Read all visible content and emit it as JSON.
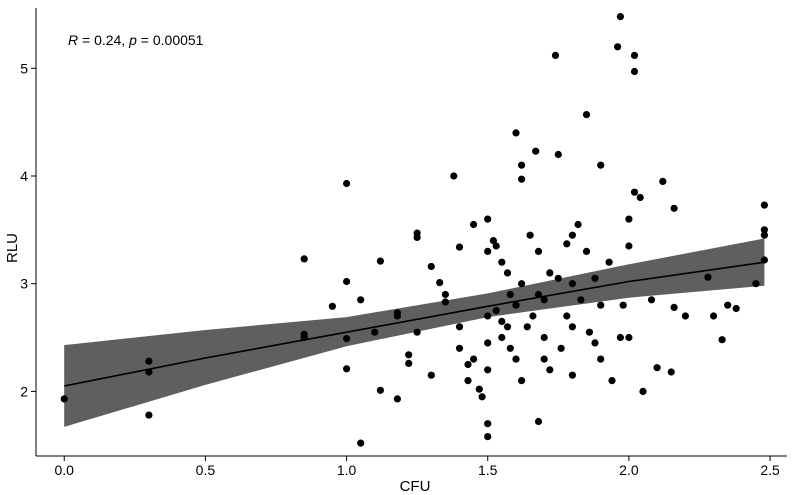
{
  "chart_data": {
    "type": "scatter",
    "title": "",
    "xlabel": "CFU",
    "ylabel": "RLU",
    "xlim": [
      -0.1,
      2.56
    ],
    "ylim": [
      1.4,
      5.56
    ],
    "x_ticks": [
      0.0,
      0.5,
      1.0,
      1.5,
      2.0,
      2.5
    ],
    "x_tick_labels": [
      "0.0",
      "0.5",
      "1.0",
      "1.5",
      "2.0",
      "2.5"
    ],
    "y_ticks": [
      2,
      3,
      4,
      5
    ],
    "y_tick_labels": [
      "2",
      "3",
      "4",
      "5"
    ],
    "grid": false,
    "annotation": {
      "r_label": "R",
      "r_text": " = 0.24, ",
      "p_label": "p",
      "p_text": " = 0.00051"
    },
    "regression": {
      "x": [
        0.0,
        0.5,
        1.0,
        1.5,
        2.0,
        2.48
      ],
      "y": [
        2.05,
        2.31,
        2.55,
        2.79,
        3.02,
        3.2
      ],
      "lower": [
        1.67,
        2.06,
        2.42,
        2.69,
        2.87,
        2.98
      ],
      "upper": [
        2.43,
        2.57,
        2.69,
        2.91,
        3.18,
        3.42
      ]
    },
    "points": [
      [
        0.0,
        1.93
      ],
      [
        0.3,
        2.28
      ],
      [
        0.3,
        2.18
      ],
      [
        0.3,
        1.78
      ],
      [
        0.85,
        3.23
      ],
      [
        0.85,
        2.53
      ],
      [
        0.85,
        2.5
      ],
      [
        0.95,
        2.79
      ],
      [
        1.0,
        3.93
      ],
      [
        1.0,
        3.02
      ],
      [
        1.0,
        2.49
      ],
      [
        1.0,
        2.21
      ],
      [
        1.05,
        2.85
      ],
      [
        1.05,
        1.52
      ],
      [
        1.1,
        2.55
      ],
      [
        1.12,
        3.21
      ],
      [
        1.12,
        2.01
      ],
      [
        1.18,
        2.73
      ],
      [
        1.18,
        2.7
      ],
      [
        1.18,
        1.93
      ],
      [
        1.22,
        2.34
      ],
      [
        1.22,
        2.26
      ],
      [
        1.25,
        3.47
      ],
      [
        1.25,
        3.43
      ],
      [
        1.25,
        2.55
      ],
      [
        1.3,
        3.16
      ],
      [
        1.3,
        2.15
      ],
      [
        1.33,
        3.01
      ],
      [
        1.35,
        2.9
      ],
      [
        1.35,
        2.83
      ],
      [
        1.38,
        4.0
      ],
      [
        1.4,
        3.34
      ],
      [
        1.4,
        2.6
      ],
      [
        1.4,
        2.4
      ],
      [
        1.43,
        2.25
      ],
      [
        1.43,
        2.1
      ],
      [
        1.45,
        3.55
      ],
      [
        1.45,
        2.3
      ],
      [
        1.47,
        2.02
      ],
      [
        1.48,
        1.95
      ],
      [
        1.5,
        3.6
      ],
      [
        1.5,
        3.3
      ],
      [
        1.5,
        2.7
      ],
      [
        1.5,
        2.45
      ],
      [
        1.5,
        2.2
      ],
      [
        1.5,
        1.7
      ],
      [
        1.5,
        1.58
      ],
      [
        1.52,
        3.4
      ],
      [
        1.53,
        3.35
      ],
      [
        1.53,
        2.75
      ],
      [
        1.55,
        3.2
      ],
      [
        1.55,
        2.65
      ],
      [
        1.55,
        2.5
      ],
      [
        1.57,
        3.1
      ],
      [
        1.57,
        2.6
      ],
      [
        1.58,
        2.9
      ],
      [
        1.58,
        2.4
      ],
      [
        1.6,
        4.4
      ],
      [
        1.6,
        2.8
      ],
      [
        1.6,
        2.3
      ],
      [
        1.62,
        4.1
      ],
      [
        1.62,
        3.97
      ],
      [
        1.62,
        3.0
      ],
      [
        1.62,
        2.1
      ],
      [
        1.64,
        2.6
      ],
      [
        1.65,
        3.45
      ],
      [
        1.66,
        2.7
      ],
      [
        1.67,
        4.23
      ],
      [
        1.68,
        3.3
      ],
      [
        1.68,
        2.9
      ],
      [
        1.68,
        1.72
      ],
      [
        1.7,
        2.85
      ],
      [
        1.7,
        2.5
      ],
      [
        1.7,
        2.3
      ],
      [
        1.72,
        3.1
      ],
      [
        1.72,
        2.2
      ],
      [
        1.74,
        5.12
      ],
      [
        1.75,
        4.2
      ],
      [
        1.75,
        3.05
      ],
      [
        1.76,
        2.4
      ],
      [
        1.78,
        3.37
      ],
      [
        1.78,
        2.7
      ],
      [
        1.8,
        3.45
      ],
      [
        1.8,
        3.0
      ],
      [
        1.8,
        2.6
      ],
      [
        1.8,
        2.15
      ],
      [
        1.82,
        3.55
      ],
      [
        1.83,
        2.85
      ],
      [
        1.85,
        4.57
      ],
      [
        1.85,
        3.3
      ],
      [
        1.86,
        2.55
      ],
      [
        1.88,
        3.05
      ],
      [
        1.88,
        2.45
      ],
      [
        1.9,
        4.1
      ],
      [
        1.9,
        2.8
      ],
      [
        1.9,
        2.3
      ],
      [
        1.93,
        3.2
      ],
      [
        1.94,
        2.1
      ],
      [
        1.96,
        5.2
      ],
      [
        1.97,
        5.48
      ],
      [
        1.97,
        2.5
      ],
      [
        1.98,
        2.8
      ],
      [
        2.0,
        3.6
      ],
      [
        2.0,
        3.35
      ],
      [
        2.0,
        2.5
      ],
      [
        2.02,
        5.12
      ],
      [
        2.02,
        4.97
      ],
      [
        2.02,
        3.85
      ],
      [
        2.04,
        3.8
      ],
      [
        2.05,
        2.0
      ],
      [
        2.08,
        2.85
      ],
      [
        2.1,
        2.22
      ],
      [
        2.12,
        3.95
      ],
      [
        2.15,
        2.18
      ],
      [
        2.16,
        3.7
      ],
      [
        2.16,
        2.78
      ],
      [
        2.2,
        2.7
      ],
      [
        2.28,
        3.06
      ],
      [
        2.3,
        2.7
      ],
      [
        2.33,
        2.48
      ],
      [
        2.35,
        2.8
      ],
      [
        2.38,
        2.77
      ],
      [
        2.45,
        3.0
      ],
      [
        2.48,
        3.73
      ],
      [
        2.48,
        3.5
      ],
      [
        2.48,
        3.45
      ],
      [
        2.48,
        3.22
      ]
    ]
  }
}
